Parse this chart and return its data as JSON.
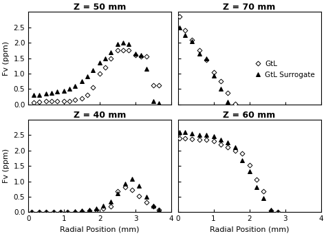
{
  "subplots": [
    {
      "title": "Z = 50 mm",
      "gtl_x": [
        0.15,
        0.3,
        0.5,
        0.65,
        0.8,
        1.0,
        1.15,
        1.3,
        1.5,
        1.65,
        1.8,
        2.0,
        2.15,
        2.3,
        2.5,
        2.65,
        2.8,
        3.0,
        3.15,
        3.3,
        3.5,
        3.65
      ],
      "gtl_y": [
        0.07,
        0.08,
        0.1,
        0.1,
        0.1,
        0.1,
        0.12,
        0.15,
        0.2,
        0.3,
        0.55,
        1.0,
        1.2,
        1.5,
        1.75,
        1.75,
        1.75,
        1.6,
        1.55,
        1.55,
        0.62,
        0.62
      ],
      "sur_x": [
        0.15,
        0.3,
        0.5,
        0.65,
        0.8,
        1.0,
        1.15,
        1.3,
        1.5,
        1.65,
        1.8,
        2.0,
        2.15,
        2.3,
        2.5,
        2.65,
        2.8,
        3.0,
        3.15,
        3.3,
        3.5,
        3.65
      ],
      "sur_y": [
        0.3,
        0.32,
        0.35,
        0.38,
        0.42,
        0.45,
        0.5,
        0.6,
        0.75,
        0.9,
        1.1,
        1.35,
        1.5,
        1.7,
        1.95,
        2.0,
        1.95,
        1.65,
        1.6,
        1.15,
        0.12,
        0.05
      ],
      "legend": false
    },
    {
      "title": "Z = 70 mm",
      "gtl_x": [
        0.05,
        0.2,
        0.4,
        0.6,
        0.8,
        1.0,
        1.2,
        1.4,
        1.6
      ],
      "gtl_y": [
        2.85,
        2.4,
        2.1,
        1.75,
        1.45,
        1.05,
        0.75,
        0.37,
        0.02
      ],
      "sur_x": [
        0.05,
        0.2,
        0.4,
        0.6,
        0.8,
        1.0,
        1.2,
        1.4
      ],
      "sur_y": [
        2.5,
        2.25,
        2.05,
        1.65,
        1.5,
        0.93,
        0.52,
        0.08
      ],
      "legend": true
    },
    {
      "title": "Z = 40 mm",
      "gtl_x": [
        0.1,
        0.3,
        0.5,
        0.7,
        0.9,
        1.1,
        1.3,
        1.5,
        1.7,
        1.9,
        2.1,
        2.3,
        2.5,
        2.7,
        2.9,
        3.1,
        3.3,
        3.5,
        3.65
      ],
      "gtl_y": [
        0.0,
        0.0,
        0.0,
        0.0,
        0.0,
        0.0,
        0.02,
        0.03,
        0.05,
        0.08,
        0.12,
        0.18,
        0.68,
        0.82,
        0.72,
        0.52,
        0.32,
        0.18,
        0.08
      ],
      "sur_x": [
        0.1,
        0.3,
        0.5,
        0.7,
        0.9,
        1.1,
        1.3,
        1.5,
        1.7,
        1.9,
        2.1,
        2.3,
        2.5,
        2.7,
        2.9,
        3.1,
        3.3,
        3.5,
        3.65
      ],
      "sur_y": [
        0.0,
        0.0,
        0.0,
        0.0,
        0.0,
        0.02,
        0.04,
        0.06,
        0.08,
        0.12,
        0.2,
        0.35,
        0.62,
        0.92,
        1.08,
        0.85,
        0.5,
        0.22,
        0.08
      ],
      "legend": false
    },
    {
      "title": "Z = 60 mm",
      "gtl_x": [
        0.05,
        0.2,
        0.4,
        0.6,
        0.8,
        1.0,
        1.2,
        1.4,
        1.6,
        1.8,
        2.0,
        2.2,
        2.4,
        2.6,
        2.8
      ],
      "gtl_y": [
        2.4,
        2.4,
        2.37,
        2.35,
        2.35,
        2.3,
        2.2,
        2.1,
        2.0,
        1.9,
        1.52,
        1.05,
        0.68,
        0.05,
        0.0
      ],
      "sur_x": [
        0.05,
        0.2,
        0.4,
        0.6,
        0.8,
        1.0,
        1.2,
        1.4,
        1.6,
        1.8,
        2.0,
        2.2,
        2.4,
        2.6,
        2.8
      ],
      "sur_y": [
        2.6,
        2.6,
        2.55,
        2.5,
        2.5,
        2.45,
        2.35,
        2.25,
        2.1,
        1.68,
        1.33,
        0.82,
        0.46,
        0.07,
        0.0
      ],
      "legend": false
    }
  ],
  "xlabel": "Radial Position (mm)",
  "ylabel": "Fv (ppm)",
  "xlim": [
    0,
    4
  ],
  "ylim": [
    0,
    3
  ],
  "yticks": [
    0,
    0.5,
    1.0,
    1.5,
    2.0,
    2.5
  ],
  "xticks": [
    0,
    1,
    2,
    3,
    4
  ],
  "legend_labels": [
    "GtL",
    "GtL Surrogate"
  ],
  "background": "white",
  "title_fontsize": 9,
  "label_fontsize": 8,
  "tick_fontsize": 7.5,
  "legend_fontsize": 7.5
}
